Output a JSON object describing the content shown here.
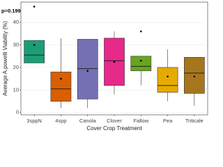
{
  "chart_data": {
    "type": "box",
    "y_label": "Average A.powelli Viability (%)",
    "x_label": "Cover Crop Treatment",
    "annotation": "p=0.199",
    "categories": [
      "3sppN",
      "4spp",
      "Canola",
      "Clover",
      "Fallow",
      "Pea",
      "Triticale"
    ],
    "colors": [
      "#1b9e77",
      "#d95f02",
      "#7570b3",
      "#e7298a",
      "#66a61e",
      "#e6ab02",
      "#a6761d"
    ],
    "boxes": [
      {
        "min": 22,
        "q1": 22,
        "median": 25.5,
        "q3": 32,
        "max": 32,
        "mean": 30,
        "outliers": [
          47
        ]
      },
      {
        "min": 2,
        "q1": 5,
        "median": 10.5,
        "q3": 18,
        "max": 33,
        "mean": 15,
        "outliers": []
      },
      {
        "min": 2,
        "q1": 6,
        "median": 19.5,
        "q3": 32.5,
        "max": 32.5,
        "mean": 18.5,
        "outliers": []
      },
      {
        "min": 8,
        "q1": 12,
        "median": 23,
        "q3": 33,
        "max": 36,
        "mean": 22.5,
        "outliers": []
      },
      {
        "min": 12,
        "q1": 18.5,
        "median": 20.5,
        "q3": 25,
        "max": 25,
        "mean": 23,
        "outliers": [
          36
        ]
      },
      {
        "min": 5,
        "q1": 9,
        "median": 12,
        "q3": 20,
        "max": 28,
        "mean": 16,
        "outliers": []
      },
      {
        "min": 3,
        "q1": 8.5,
        "median": 17.5,
        "q3": 24.5,
        "max": 24.5,
        "mean": 16,
        "outliers": []
      }
    ],
    "ylim": [
      -1,
      49
    ],
    "yticks": [
      0,
      10,
      20,
      30,
      40
    ],
    "grid": true
  }
}
